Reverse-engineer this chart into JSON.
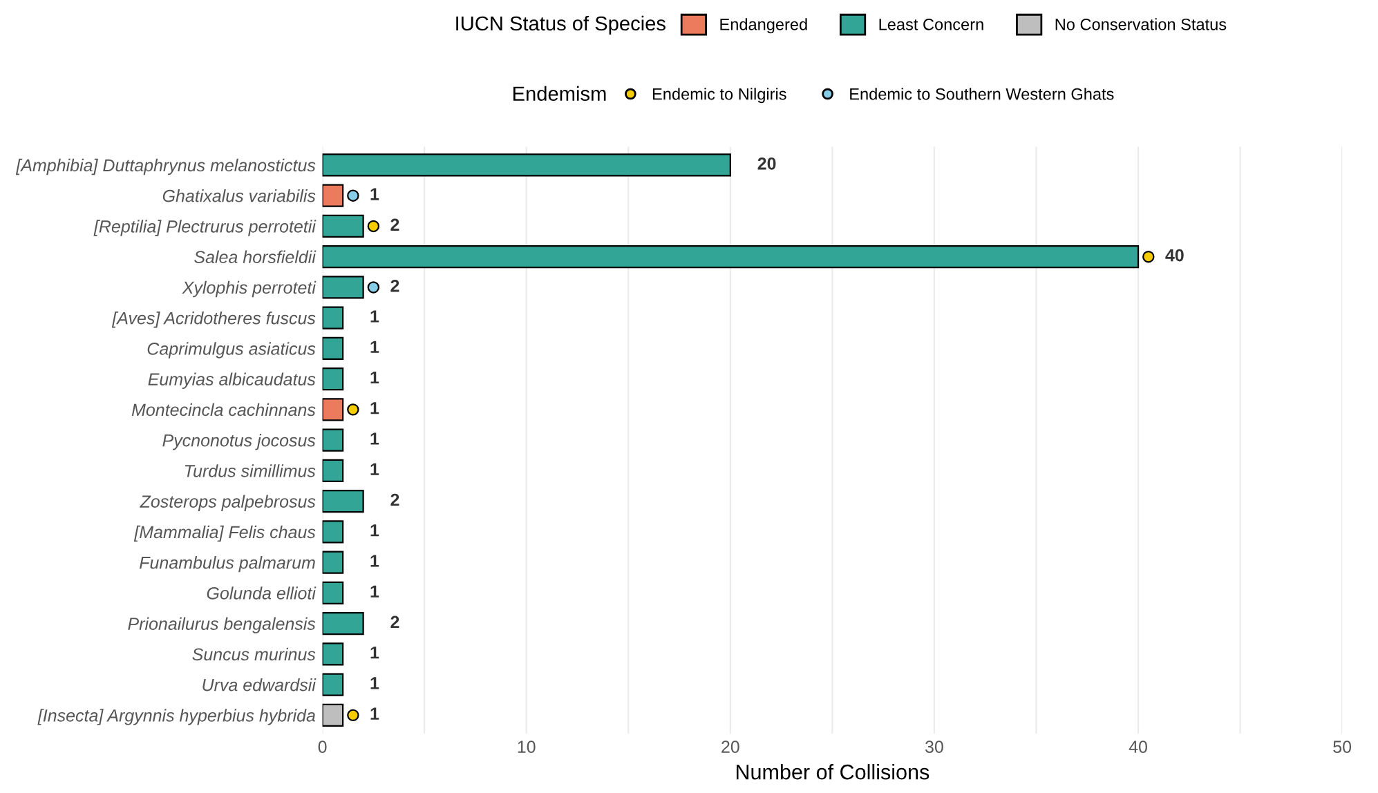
{
  "chart_data": {
    "type": "bar",
    "orientation": "horizontal",
    "categories": [
      "[Amphibia] Duttaphrynus melanostictus",
      "Ghatixalus variabilis",
      "[Reptilia] Plectrurus perrotetii",
      "Salea horsfieldii",
      "Xylophis perroteti",
      "[Aves] Acridotheres fuscus",
      "Caprimulgus asiaticus",
      "Eumyias albicaudatus",
      "Montecincla cachinnans",
      "Pycnonotus jocosus",
      "Turdus simillimus",
      "Zosterops palpebrosus",
      "[Mammalia] Felis chaus",
      "Funambulus palmarum",
      "Golunda ellioti",
      "Prionailurus bengalensis",
      "Suncus murinus",
      "Urva edwardsii",
      "[Insecta] Argynnis hyperbius hybrida"
    ],
    "series": [
      {
        "name": "Endangered",
        "color": "#ec7a5d",
        "values": [
          null,
          1,
          null,
          null,
          null,
          null,
          null,
          null,
          1,
          null,
          null,
          null,
          null,
          null,
          null,
          null,
          null,
          null,
          null
        ],
        "value_labels": [
          null,
          "1",
          null,
          null,
          null,
          null,
          null,
          null,
          "1",
          null,
          null,
          null,
          null,
          null,
          null,
          null,
          null,
          null,
          null
        ]
      },
      {
        "name": "Least Concern",
        "color": "#32a596",
        "values": [
          20,
          null,
          2,
          40,
          2,
          1,
          1,
          1,
          null,
          1,
          1,
          2,
          1,
          1,
          1,
          2,
          1,
          1,
          null
        ],
        "value_labels": [
          "20",
          null,
          "2",
          "40",
          "2",
          "1",
          "1",
          "1",
          null,
          "1",
          "1",
          "2",
          "1",
          "1",
          "1",
          "2",
          "1",
          "1",
          null
        ]
      },
      {
        "name": "No Conservation Status",
        "color": "#bebebe",
        "values": [
          null,
          null,
          null,
          null,
          null,
          null,
          null,
          null,
          null,
          null,
          null,
          null,
          null,
          null,
          null,
          null,
          null,
          null,
          1
        ],
        "value_labels": [
          null,
          null,
          null,
          null,
          null,
          null,
          null,
          null,
          null,
          null,
          null,
          null,
          null,
          null,
          null,
          null,
          null,
          null,
          "1"
        ]
      },
      {
        "name": "Endemic to Nilgiris",
        "type": "scatter",
        "color": "#f5cc00",
        "values": [
          null,
          null,
          2.5,
          40.5,
          null,
          null,
          null,
          null,
          1.5,
          null,
          null,
          null,
          null,
          null,
          null,
          null,
          null,
          null,
          1.5
        ]
      },
      {
        "name": "Endemic to Southern Western Ghats",
        "type": "scatter",
        "color": "#87cde8",
        "values": [
          null,
          1.5,
          null,
          null,
          2.5,
          null,
          null,
          null,
          null,
          null,
          null,
          null,
          null,
          null,
          null,
          null,
          null,
          null,
          null
        ]
      }
    ],
    "legend_title": [
      "IUCN Status of Species",
      "Endemism"
    ],
    "legend": "top",
    "xlabel": "Number of Collisions",
    "xlim": [
      0,
      50
    ],
    "xticks": [
      0,
      {
        "value": 5,
        "label": null
      },
      10,
      {
        "value": 15,
        "label": null
      },
      20,
      {
        "value": 25,
        "label": null
      },
      30,
      {
        "value": 35,
        "label": null
      },
      40,
      {
        "value": 45,
        "label": null
      },
      50
    ],
    "grid": "x"
  }
}
